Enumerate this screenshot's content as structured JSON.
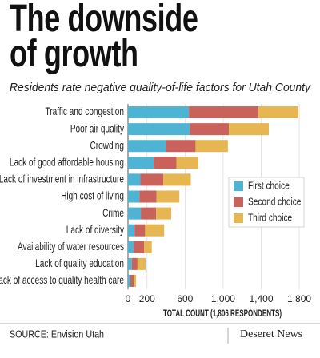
{
  "chart_data": {
    "type": "stacked_barh",
    "title": "The downside of growth",
    "subtitle": "Residents rate negative quality-of-life factors for Utah County",
    "categories": [
      "Traffic and congestion",
      "Poor air quality",
      "Crowding",
      "Lack of good affordable housing",
      "Lack of investment in infrastructure",
      "High cost of living",
      "Crime",
      "Lack of diversity",
      "Availability of water resources",
      "Lack of quality education",
      "Lack of access to quality health care"
    ],
    "series": [
      {
        "name": "First choice",
        "color": "#4fb3d3",
        "values": [
          640,
          650,
          400,
          270,
          130,
          120,
          135,
          70,
          60,
          40,
          25
        ]
      },
      {
        "name": "Second choice",
        "color": "#c9625b",
        "values": [
          730,
          410,
          310,
          240,
          240,
          180,
          160,
          110,
          110,
          60,
          35
        ]
      },
      {
        "name": "Third choice",
        "color": "#e6b653",
        "values": [
          420,
          420,
          340,
          230,
          290,
          240,
          160,
          200,
          80,
          85,
          25
        ]
      }
    ],
    "xlabel": "TOTAL COUNT (1,806 RESPONDENTS)",
    "xlim": [
      0,
      1850
    ],
    "xticks": [
      0,
      200,
      600,
      {
        "value": 1000,
        "label": "1,000"
      },
      {
        "value": 1400,
        "label": "1,400"
      },
      {
        "value": 1800,
        "label": "1,800"
      }
    ],
    "grid": true,
    "legend": "right",
    "source": "SOURCE: Envision Utah",
    "publisher": "Deseret News"
  }
}
